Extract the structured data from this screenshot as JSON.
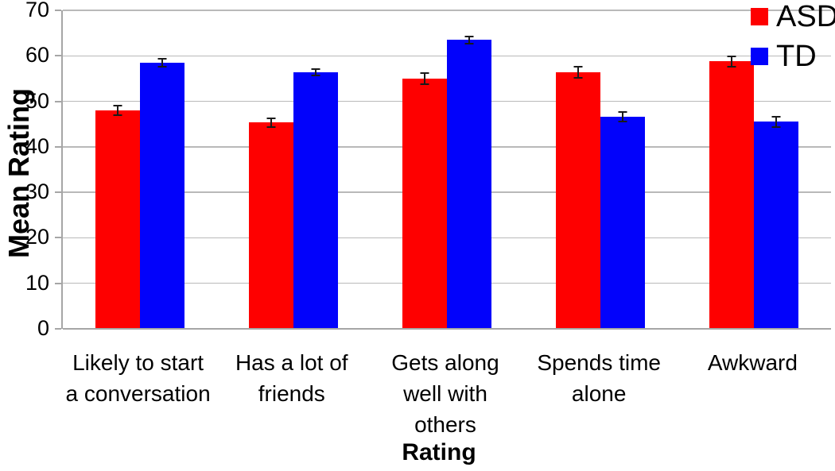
{
  "chart_data": {
    "type": "bar",
    "title": "",
    "xlabel": "Rating",
    "ylabel": "Mean Rating",
    "categories": [
      "Likely to start a conversation",
      "Has a lot of friends",
      "Gets along well with others",
      "Spends time alone",
      "Awkward"
    ],
    "categories_lines": [
      [
        "Likely to start",
        "a conversation"
      ],
      [
        "Has a lot of",
        "friends"
      ],
      [
        "Gets along",
        "well with",
        "others"
      ],
      [
        "Spends time",
        "alone"
      ],
      [
        "Awkward"
      ]
    ],
    "series": [
      {
        "name": "ASD",
        "color": "#fe0000",
        "values": [
          48.0,
          45.3,
          55.0,
          56.3,
          58.8
        ],
        "errors": [
          1.3,
          1.2,
          1.4,
          1.4,
          1.3
        ]
      },
      {
        "name": "TD",
        "color": "#0202fb",
        "values": [
          58.5,
          56.4,
          63.5,
          46.6,
          45.5
        ],
        "errors": [
          1.0,
          0.9,
          1.0,
          1.2,
          1.3
        ]
      }
    ],
    "ylim": [
      0,
      70
    ],
    "ytick_step": 10,
    "ytick_labels": [
      "0",
      "10",
      "20",
      "30",
      "40",
      "50",
      "60",
      "70"
    ],
    "grid": true,
    "legend_position": "top-right",
    "grid_color": "#b9b9b9",
    "axis_color": "#a6a6a6",
    "error_bar_color": "#1a1a1a"
  }
}
